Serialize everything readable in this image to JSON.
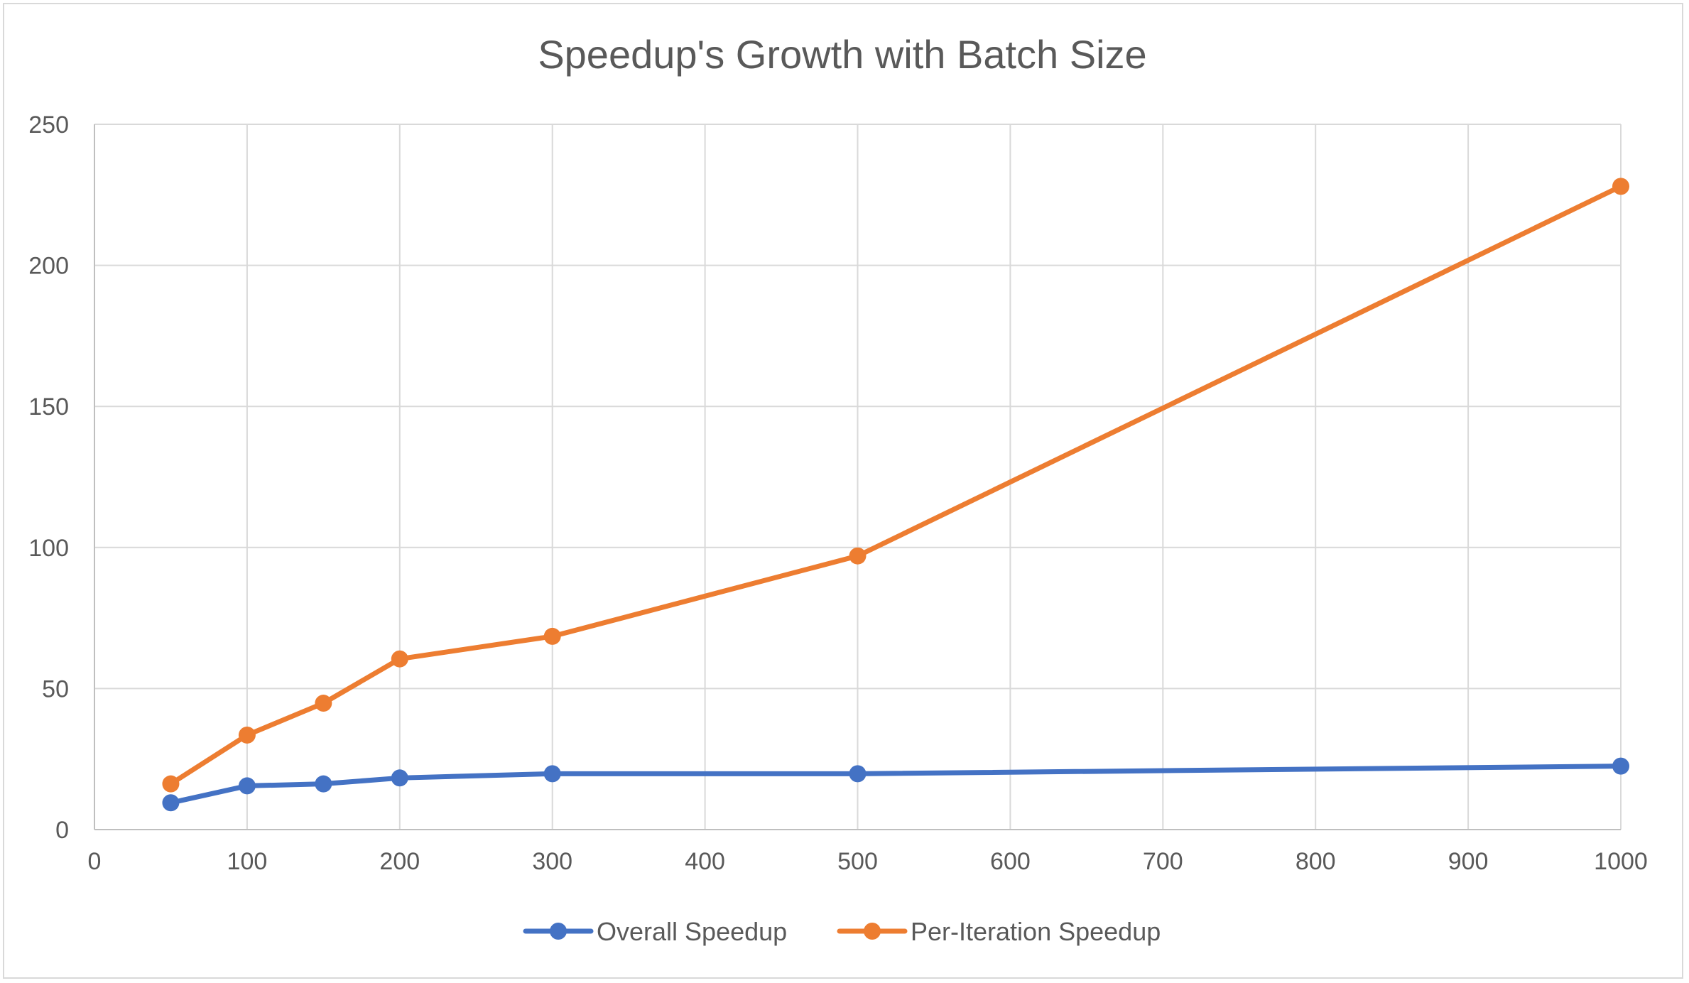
{
  "chart_data": {
    "type": "line",
    "title": "Speedup's Growth with Batch Size",
    "xlabel": "",
    "ylabel": "",
    "xlim": [
      0,
      1000
    ],
    "ylim": [
      0,
      250
    ],
    "x_ticks": [
      0,
      100,
      200,
      300,
      400,
      500,
      600,
      700,
      800,
      900,
      1000
    ],
    "y_ticks": [
      0,
      50,
      100,
      150,
      200,
      250
    ],
    "grid": true,
    "legend_position": "bottom",
    "x": [
      50,
      100,
      150,
      200,
      300,
      500,
      1000
    ],
    "series": [
      {
        "name": "Overall Speedup",
        "color": "#4472C4",
        "values": [
          9.5,
          15.5,
          16.2,
          18.3,
          19.8,
          19.8,
          22.5
        ]
      },
      {
        "name": "Per-Iteration Speedup",
        "color": "#ED7D31",
        "values": [
          16.2,
          33.5,
          44.8,
          60.5,
          68.5,
          97.0,
          228.0
        ]
      }
    ],
    "grid_color": "#d9d9d9",
    "axis_color": "#bfbfbf"
  }
}
